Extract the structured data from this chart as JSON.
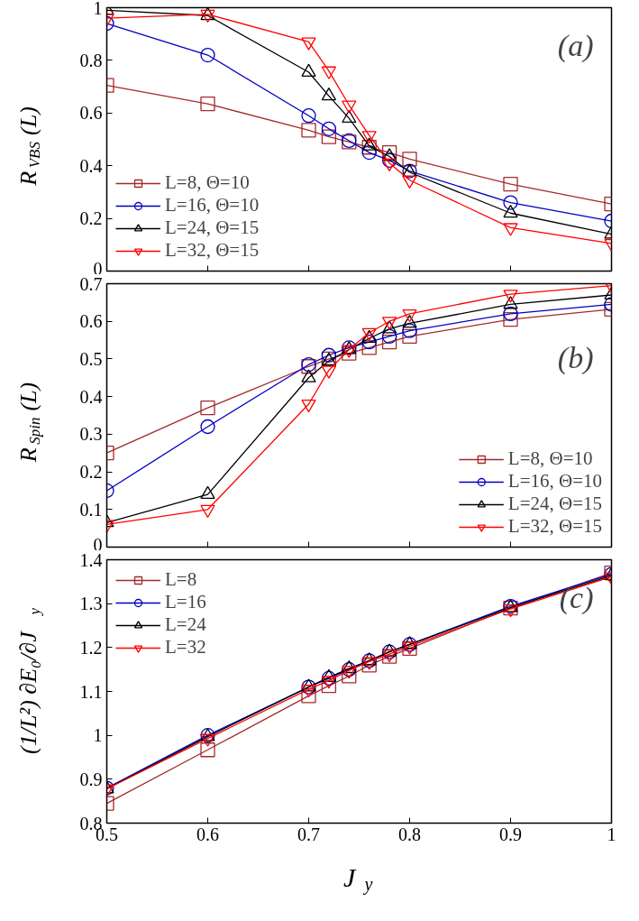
{
  "chart_data": [
    {
      "type": "line",
      "ylabel": "R$_{VBS}$(L)",
      "annotations": [
        "(a)"
      ],
      "x": [
        0.5,
        0.6,
        0.7,
        0.72,
        0.74,
        0.76,
        0.78,
        0.8,
        0.9,
        1.0
      ],
      "xlim": [
        0.5,
        1.0
      ],
      "xticks": [
        0.5,
        0.6,
        0.7,
        0.8,
        0.9,
        1
      ],
      "ylim": [
        0,
        1
      ],
      "yticks": [
        0,
        0.2,
        0.4,
        0.6,
        0.8,
        1
      ],
      "tick_labels": "y",
      "legend": "bottom left",
      "grid": false,
      "series": [
        {
          "name": "L=8, Θ=10",
          "color": "#a52a2a",
          "marker": "square",
          "values": [
            0.705,
            0.635,
            0.535,
            0.51,
            0.49,
            0.47,
            0.45,
            0.425,
            0.33,
            0.255
          ]
        },
        {
          "name": "L=16, Θ=10",
          "color": "#0000c0",
          "marker": "circle",
          "values": [
            0.94,
            0.82,
            0.59,
            0.54,
            0.495,
            0.45,
            0.42,
            0.38,
            0.26,
            0.19
          ]
        },
        {
          "name": "L=24, Θ=15",
          "color": "#000000",
          "marker": "triangle",
          "values": [
            0.99,
            0.97,
            0.755,
            0.665,
            0.58,
            0.475,
            0.435,
            0.375,
            0.22,
            0.14
          ]
        },
        {
          "name": "L=32, Θ=15",
          "color": "#ff0000",
          "marker": "triangle",
          "values": [
            0.96,
            0.975,
            0.87,
            0.76,
            0.63,
            0.515,
            0.41,
            0.345,
            0.165,
            0.105
          ]
        }
      ]
    },
    {
      "type": "line",
      "ylabel": "R$_{Spin}$(L)",
      "annotations": [
        "(b)"
      ],
      "x": [
        0.5,
        0.6,
        0.7,
        0.72,
        0.74,
        0.76,
        0.78,
        0.8,
        0.9,
        1.0
      ],
      "xlim": [
        0.5,
        1.0
      ],
      "xticks": [
        0.5,
        0.6,
        0.7,
        0.8,
        0.9,
        1
      ],
      "ylim": [
        0,
        0.7
      ],
      "yticks": [
        0,
        0.1,
        0.2,
        0.3,
        0.4,
        0.5,
        0.6,
        0.7
      ],
      "tick_labels": "y",
      "legend": "bottom right",
      "grid": false,
      "series": [
        {
          "name": "L=8, Θ=10",
          "color": "#a52a2a",
          "marker": "square",
          "values": [
            0.25,
            0.37,
            0.48,
            0.5,
            0.515,
            0.53,
            0.545,
            0.56,
            0.605,
            0.632
          ]
        },
        {
          "name": "L=16, Θ=10",
          "color": "#0000c0",
          "marker": "circle",
          "values": [
            0.15,
            0.32,
            0.485,
            0.51,
            0.53,
            0.545,
            0.56,
            0.575,
            0.62,
            0.645
          ]
        },
        {
          "name": "L=24, Θ=15",
          "color": "#000000",
          "marker": "triangle",
          "values": [
            0.065,
            0.14,
            0.45,
            0.495,
            0.525,
            0.555,
            0.58,
            0.595,
            0.645,
            0.67
          ]
        },
        {
          "name": "L=32, Θ=15",
          "color": "#ff0000",
          "marker": "triangle",
          "values": [
            0.06,
            0.1,
            0.38,
            0.47,
            0.525,
            0.57,
            0.6,
            0.62,
            0.672,
            0.695
          ]
        }
      ]
    },
    {
      "type": "line",
      "ylabel": "(1/L²) ∂E₀/∂J$_{y}$",
      "xlabel": "J$_{y}$",
      "annotations": [
        "(c)"
      ],
      "x": [
        0.5,
        0.6,
        0.7,
        0.72,
        0.74,
        0.76,
        0.78,
        0.8,
        0.9,
        1.0
      ],
      "xlim": [
        0.5,
        1.0
      ],
      "xticks": [
        0.5,
        0.6,
        0.7,
        0.8,
        0.9,
        1
      ],
      "ylim": [
        0.8,
        1.4
      ],
      "yticks": [
        0.8,
        0.9,
        1,
        1.1,
        1.2,
        1.3,
        1.4
      ],
      "legend": "top left",
      "grid": false,
      "series": [
        {
          "name": "L=8",
          "color": "#a52a2a",
          "marker": "square",
          "values": [
            0.845,
            0.967,
            1.09,
            1.113,
            1.135,
            1.16,
            1.18,
            1.198,
            1.29,
            1.37
          ]
        },
        {
          "name": "L=16",
          "color": "#0000c0",
          "marker": "circle",
          "values": [
            0.88,
            1.0,
            1.11,
            1.13,
            1.15,
            1.17,
            1.19,
            1.207,
            1.294,
            1.367
          ]
        },
        {
          "name": "L=24",
          "color": "#000000",
          "marker": "triangle",
          "values": [
            0.878,
            0.997,
            1.11,
            1.132,
            1.152,
            1.17,
            1.19,
            1.207,
            1.291,
            1.364
          ]
        },
        {
          "name": "L=32",
          "color": "#ff0000",
          "marker": "triangle",
          "values": [
            0.878,
            0.993,
            1.105,
            1.125,
            1.148,
            1.168,
            1.185,
            1.203,
            1.288,
            1.361
          ]
        }
      ]
    }
  ]
}
